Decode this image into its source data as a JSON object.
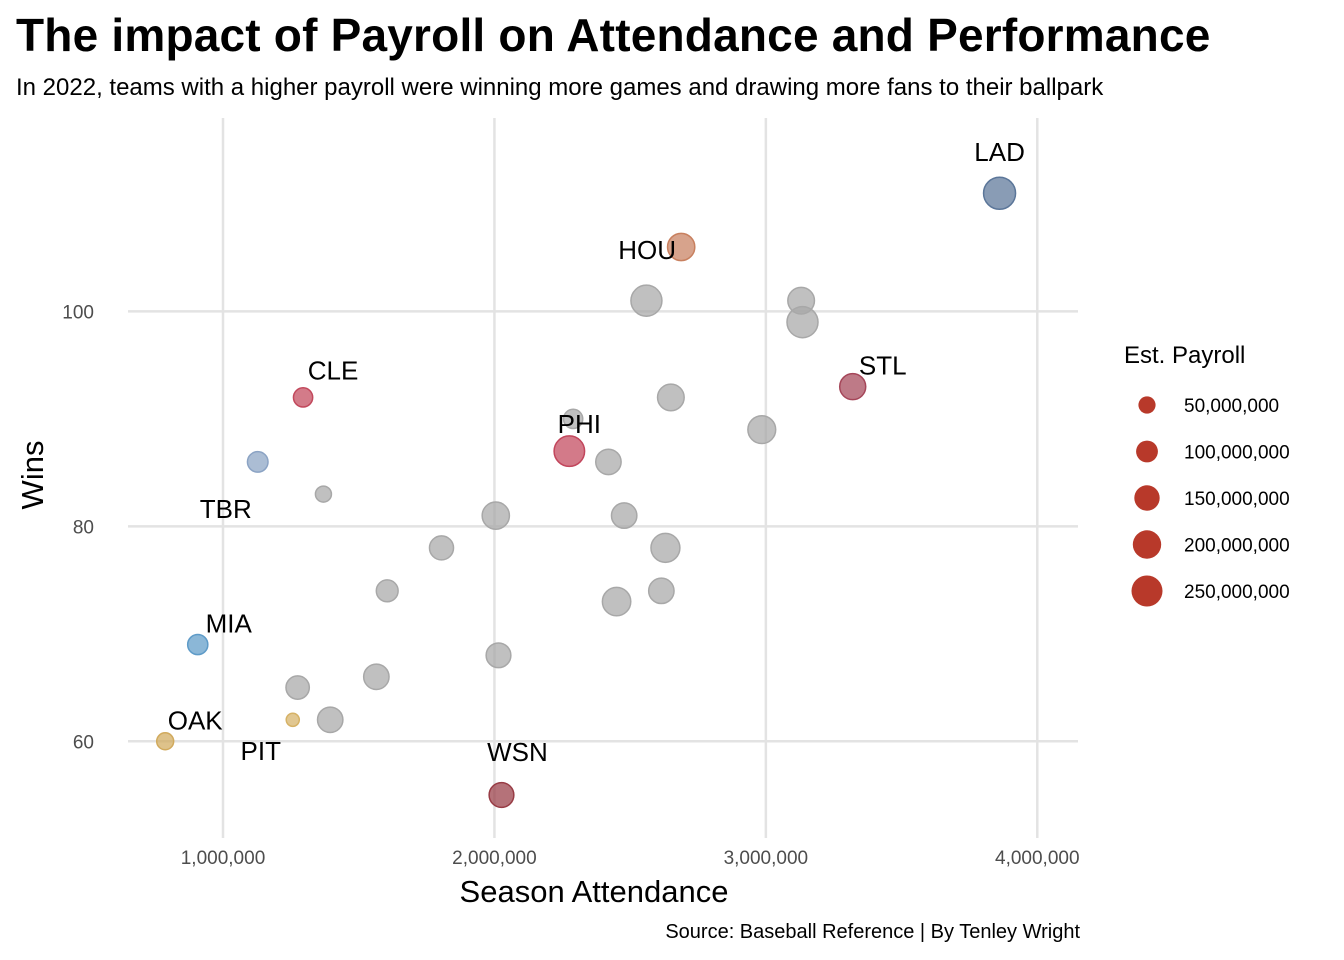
{
  "header": {
    "title": "The impact of Payroll on Attendance and Performance",
    "subtitle": "In 2022, teams with a higher payroll were winning more games and drawing more fans to their ballpark",
    "caption": "Source: Baseball Reference | By Tenley Wright"
  },
  "chart_data": {
    "type": "scatter",
    "title": "The impact of Payroll on Attendance and Performance",
    "subtitle": "In 2022, teams with a higher payroll were winning more games and drawing more fans to their ballpark",
    "xlabel": "Season Attendance",
    "ylabel": "Wins",
    "xlim": [
      650000,
      4150000
    ],
    "ylim": [
      51,
      118
    ],
    "x_ticks": [
      1000000,
      2000000,
      3000000,
      4000000
    ],
    "x_tick_labels": [
      "1,000,000",
      "2,000,000",
      "3,000,000",
      "4,000,000"
    ],
    "y_ticks": [
      60,
      80,
      100
    ],
    "y_tick_labels": [
      "60",
      "80",
      "100"
    ],
    "grid": true,
    "size_legend": {
      "title": "Est. Payroll",
      "position": "right",
      "color": "#b8392a",
      "values": [
        50000000,
        100000000,
        150000000,
        200000000,
        250000000
      ],
      "labels": [
        "50,000,000",
        "100,000,000",
        "150,000,000",
        "200,000,000",
        "250,000,000"
      ]
    },
    "highlight_colors": {
      "LAD": "#5b7699",
      "HOU": "#c8805f",
      "STL": "#a54659",
      "PHI": "#c2465c",
      "CLE": "#c2485c",
      "TBR": "#8ba3c4",
      "MIA": "#5e9bc8",
      "OAK": "#d1aa5d",
      "PIT": "#d6b266",
      "WSN": "#983c45"
    },
    "default_color": "#a8a8a8",
    "points": [
      {
        "team": "LAD",
        "x": 3861000,
        "y": 111,
        "payroll": 270000000,
        "label": "LAD"
      },
      {
        "team": "HOU",
        "x": 2688000,
        "y": 106,
        "payroll": 180000000,
        "label": "HOU"
      },
      {
        "team": "STL",
        "x": 3320000,
        "y": 93,
        "payroll": 160000000,
        "label": "STL"
      },
      {
        "team": "PHI",
        "x": 2276000,
        "y": 87,
        "payroll": 240000000,
        "label": "PHI"
      },
      {
        "team": "CLE",
        "x": 1295000,
        "y": 92,
        "payroll": 70000000,
        "label": "CLE"
      },
      {
        "team": "TBR",
        "x": 1128000,
        "y": 86,
        "payroll": 85000000,
        "label": "TBR"
      },
      {
        "team": "MIA",
        "x": 907000,
        "y": 69,
        "payroll": 80000000,
        "label": "MIA"
      },
      {
        "team": "OAK",
        "x": 787000,
        "y": 60,
        "payroll": 48000000,
        "label": "OAK"
      },
      {
        "team": "PIT",
        "x": 1257000,
        "y": 62,
        "payroll": 20000000,
        "label": "PIT"
      },
      {
        "team": "WSN",
        "x": 2026000,
        "y": 55,
        "payroll": 140000000,
        "label": "WSN"
      },
      {
        "team": "",
        "x": 2560000,
        "y": 101,
        "payroll": 250000000
      },
      {
        "team": "",
        "x": 3130000,
        "y": 101,
        "payroll": 170000000
      },
      {
        "team": "",
        "x": 3135000,
        "y": 99,
        "payroll": 250000000
      },
      {
        "team": "",
        "x": 2650000,
        "y": 92,
        "payroll": 170000000
      },
      {
        "team": "",
        "x": 2290000,
        "y": 90,
        "payroll": 70000000
      },
      {
        "team": "",
        "x": 2985000,
        "y": 89,
        "payroll": 190000000
      },
      {
        "team": "",
        "x": 2420000,
        "y": 86,
        "payroll": 150000000
      },
      {
        "team": "",
        "x": 1370000,
        "y": 83,
        "payroll": 40000000
      },
      {
        "team": "",
        "x": 2005000,
        "y": 81,
        "payroll": 180000000
      },
      {
        "team": "",
        "x": 2478000,
        "y": 81,
        "payroll": 150000000
      },
      {
        "team": "",
        "x": 1805000,
        "y": 78,
        "payroll": 130000000
      },
      {
        "team": "",
        "x": 2630000,
        "y": 78,
        "payroll": 210000000
      },
      {
        "team": "",
        "x": 1605000,
        "y": 74,
        "payroll": 100000000
      },
      {
        "team": "",
        "x": 2615000,
        "y": 74,
        "payroll": 150000000
      },
      {
        "team": "",
        "x": 2450000,
        "y": 73,
        "payroll": 200000000
      },
      {
        "team": "",
        "x": 2015000,
        "y": 68,
        "payroll": 140000000
      },
      {
        "team": "",
        "x": 1565000,
        "y": 66,
        "payroll": 150000000
      },
      {
        "team": "",
        "x": 1275000,
        "y": 65,
        "payroll": 120000000
      },
      {
        "team": "",
        "x": 1395000,
        "y": 62,
        "payroll": 150000000
      }
    ]
  }
}
